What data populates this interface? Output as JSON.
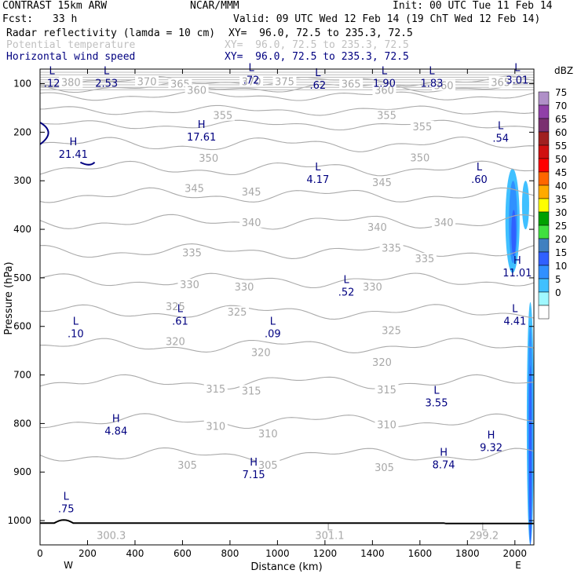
{
  "header": {
    "model": "CONTRAST 15km ARW",
    "center": "NCAR/MMM",
    "init": "Init: 00 UTC Tue 11 Feb 14",
    "fcst_label": "Fcst:",
    "fcst_value": "33 h",
    "valid": "Valid: 09 UTC Wed 12 Feb 14 (19 ChT Wed 12 Feb 14)",
    "fields": [
      {
        "name": "Radar reflectivity (lamda = 10 cm)",
        "xy": "XY=  96.0, 72.5 to 235.3, 72.5",
        "color": "#000000"
      },
      {
        "name": "Potential temperature",
        "xy": "XY=  96.0, 72.5 to 235.3, 72.5",
        "color": "#c0c0c0"
      },
      {
        "name": "Horizontal wind speed",
        "xy": "XY=  96.0, 72.5 to 235.3, 72.5",
        "color": "#000080"
      }
    ]
  },
  "chart_data": {
    "type": "cross-section",
    "xlabel": "Distance (km)",
    "ylabel": "Pressure (hPa)",
    "xlim": [
      0,
      2080
    ],
    "ylim": [
      1050,
      70
    ],
    "x_ticks": [
      0,
      200,
      400,
      600,
      800,
      1000,
      1200,
      1400,
      1600,
      1800,
      2000
    ],
    "y_ticks": [
      100,
      200,
      300,
      400,
      500,
      600,
      700,
      800,
      900,
      1000
    ],
    "west_label": "W",
    "east_label": "E",
    "theta_contours": [
      {
        "level": 305,
        "p": 865
      },
      {
        "level": 310,
        "p": 795
      },
      {
        "level": 315,
        "p": 715
      },
      {
        "level": 320,
        "p": 640
      },
      {
        "level": 325,
        "p": 570
      },
      {
        "level": 330,
        "p": 505
      },
      {
        "level": 335,
        "p": 445
      },
      {
        "level": 340,
        "p": 385
      },
      {
        "level": 345,
        "p": 330
      },
      {
        "level": 350,
        "p": 275
      },
      {
        "level": 355,
        "p": 225
      },
      {
        "level": 360,
        "p": 185
      },
      {
        "level": 365,
        "p": 155
      },
      {
        "level": 370,
        "p": 125
      },
      {
        "level": 375,
        "p": 108
      },
      {
        "level": 380,
        "p": 95
      }
    ],
    "theta_labels": [
      {
        "text": "380",
        "x": 130,
        "p": 97
      },
      {
        "text": "370",
        "x": 450,
        "p": 95
      },
      {
        "text": "365",
        "x": 590,
        "p": 100
      },
      {
        "text": "360",
        "x": 660,
        "p": 113
      },
      {
        "text": "370",
        "x": 890,
        "p": 95
      },
      {
        "text": "375",
        "x": 1030,
        "p": 95
      },
      {
        "text": "365",
        "x": 1310,
        "p": 100
      },
      {
        "text": "360",
        "x": 1450,
        "p": 113
      },
      {
        "text": "360",
        "x": 1700,
        "p": 103
      },
      {
        "text": "365",
        "x": 1940,
        "p": 97
      },
      {
        "text": "355",
        "x": 770,
        "p": 165
      },
      {
        "text": "355",
        "x": 1460,
        "p": 165
      },
      {
        "text": "355",
        "x": 1610,
        "p": 188
      },
      {
        "text": "350",
        "x": 710,
        "p": 253
      },
      {
        "text": "350",
        "x": 1600,
        "p": 252
      },
      {
        "text": "345",
        "x": 650,
        "p": 315
      },
      {
        "text": "345",
        "x": 890,
        "p": 322
      },
      {
        "text": "345",
        "x": 1440,
        "p": 303
      },
      {
        "text": "340",
        "x": 890,
        "p": 385
      },
      {
        "text": "340",
        "x": 1420,
        "p": 395
      },
      {
        "text": "340",
        "x": 1700,
        "p": 385
      },
      {
        "text": "335",
        "x": 640,
        "p": 448
      },
      {
        "text": "335",
        "x": 1480,
        "p": 438
      },
      {
        "text": "335",
        "x": 1620,
        "p": 460
      },
      {
        "text": "330",
        "x": 630,
        "p": 513
      },
      {
        "text": "330",
        "x": 860,
        "p": 518
      },
      {
        "text": "330",
        "x": 1400,
        "p": 518
      },
      {
        "text": "325",
        "x": 570,
        "p": 558
      },
      {
        "text": "325",
        "x": 830,
        "p": 570
      },
      {
        "text": "325",
        "x": 1480,
        "p": 608
      },
      {
        "text": "320",
        "x": 570,
        "p": 630
      },
      {
        "text": "320",
        "x": 930,
        "p": 653
      },
      {
        "text": "320",
        "x": 1440,
        "p": 673
      },
      {
        "text": "315",
        "x": 740,
        "p": 728
      },
      {
        "text": "315",
        "x": 890,
        "p": 732
      },
      {
        "text": "315",
        "x": 1460,
        "p": 730
      },
      {
        "text": "310",
        "x": 740,
        "p": 805
      },
      {
        "text": "310",
        "x": 960,
        "p": 820
      },
      {
        "text": "310",
        "x": 1460,
        "p": 802
      },
      {
        "text": "305",
        "x": 620,
        "p": 885
      },
      {
        "text": "305",
        "x": 960,
        "p": 885
      },
      {
        "text": "305",
        "x": 1450,
        "p": 890
      },
      {
        "text": "300.3",
        "x": 300,
        "p": 1030
      },
      {
        "text": "301.1",
        "x": 1220,
        "p": 1030
      },
      {
        "text": "299.2",
        "x": 1870,
        "p": 1030
      }
    ],
    "theta_extremes": [
      {
        "text": "L",
        "x": 1220,
        "p": 1012
      },
      {
        "text": "L",
        "x": 1870,
        "p": 1012
      }
    ],
    "wind_extremes": [
      {
        "type": "L",
        "value": ".12",
        "x": 50,
        "p": 92
      },
      {
        "type": "L",
        "value": "2.53",
        "x": 280,
        "p": 92
      },
      {
        "type": "L",
        "value": ".72",
        "x": 890,
        "p": 85
      },
      {
        "type": "L",
        "value": ".62",
        "x": 1170,
        "p": 96
      },
      {
        "type": "L",
        "value": "1.90",
        "x": 1450,
        "p": 92
      },
      {
        "type": "L",
        "value": "1.83",
        "x": 1650,
        "p": 92
      },
      {
        "type": "L",
        "value": "3.01",
        "x": 2010,
        "p": 85
      },
      {
        "type": "H",
        "value": "17.61",
        "x": 680,
        "p": 203
      },
      {
        "type": "H",
        "value": "21.41",
        "x": 140,
        "p": 238
      },
      {
        "type": "L",
        "value": ".54",
        "x": 1940,
        "p": 205
      },
      {
        "type": "L",
        "value": "4.17",
        "x": 1170,
        "p": 290
      },
      {
        "type": "L",
        "value": ".60",
        "x": 1850,
        "p": 290
      },
      {
        "type": "H",
        "value": "11.01",
        "x": 2010,
        "p": 482
      },
      {
        "type": "L",
        "value": ".52",
        "x": 1290,
        "p": 522
      },
      {
        "type": "L",
        "value": ".61",
        "x": 590,
        "p": 582
      },
      {
        "type": "L",
        "value": "4.41",
        "x": 2000,
        "p": 582
      },
      {
        "type": "L",
        "value": ".10",
        "x": 150,
        "p": 608
      },
      {
        "type": "L",
        "value": ".09",
        "x": 980,
        "p": 608
      },
      {
        "type": "L",
        "value": "3.55",
        "x": 1670,
        "p": 750
      },
      {
        "type": "H",
        "value": "4.84",
        "x": 320,
        "p": 808
      },
      {
        "type": "H",
        "value": "9.32",
        "x": 1900,
        "p": 842
      },
      {
        "type": "H",
        "value": "8.74",
        "x": 1700,
        "p": 878
      },
      {
        "type": "H",
        "value": "7.15",
        "x": 900,
        "p": 898
      },
      {
        "type": "L",
        "value": ".75",
        "x": 110,
        "p": 968
      }
    ],
    "reflectivity_scale": {
      "unit": "dBZ",
      "levels": [
        75,
        70,
        65,
        60,
        55,
        50,
        45,
        40,
        35,
        30,
        25,
        20,
        15,
        10,
        5,
        0
      ],
      "colors": [
        "#b090c8",
        "#9040a8",
        "#7a3070",
        "#a02020",
        "#d01010",
        "#ff0000",
        "#ff6600",
        "#ffaa00",
        "#ffff00",
        "#00a000",
        "#40e040",
        "#4080c0",
        "#3060ff",
        "#3090ff",
        "#40c0ff",
        "#a0f8ff"
      ]
    },
    "reflectivity_regions": [
      {
        "dbz": 5,
        "x": [
          1960,
          2020
        ],
        "p": [
          275,
          490
        ]
      },
      {
        "dbz": 10,
        "x": [
          1975,
          2010
        ],
        "p": [
          300,
          470
        ]
      },
      {
        "dbz": 15,
        "x": [
          1985,
          2005
        ],
        "p": [
          360,
          455
        ]
      },
      {
        "dbz": 5,
        "x": [
          2030,
          2060
        ],
        "p": [
          300,
          400
        ]
      },
      {
        "dbz": 5,
        "x": [
          2050,
          2080
        ],
        "p": [
          550,
          1050
        ]
      },
      {
        "dbz": 10,
        "x": [
          2055,
          2075
        ],
        "p": [
          600,
          1050
        ]
      },
      {
        "dbz": 15,
        "x": [
          2060,
          2070
        ],
        "p": [
          680,
          1050
        ]
      }
    ]
  }
}
